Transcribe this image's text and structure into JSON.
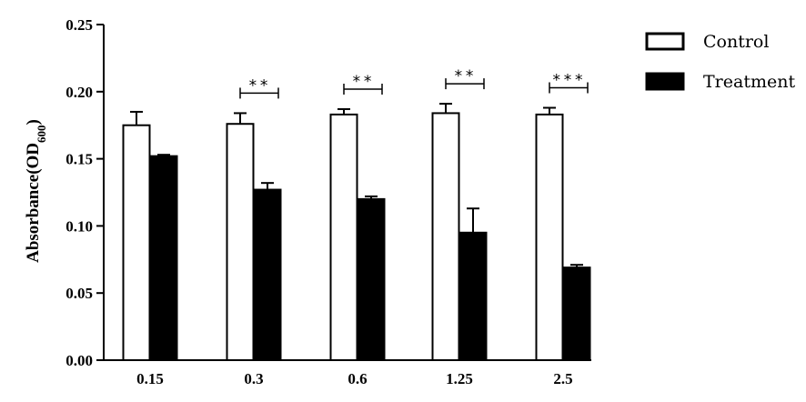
{
  "chart_data": {
    "type": "bar",
    "categories": [
      "0.15",
      "0.3",
      "0.6",
      "1.25",
      "2.5"
    ],
    "series": [
      {
        "name": "Control",
        "values": [
          0.175,
          0.176,
          0.183,
          0.184,
          0.183
        ],
        "errors": [
          0.01,
          0.008,
          0.004,
          0.007,
          0.005
        ],
        "color": "#ffffff"
      },
      {
        "name": "Treatment",
        "values": [
          0.152,
          0.127,
          0.12,
          0.095,
          0.069
        ],
        "errors": [
          0.001,
          0.005,
          0.002,
          0.018,
          0.002
        ],
        "color": "#000000"
      }
    ],
    "significance": [
      "",
      "**",
      "**",
      "**",
      "***"
    ],
    "ylabel_main": "Absorbance(OD",
    "ylabel_sub": "600",
    "ylabel_close": ")",
    "xlabel": "",
    "ylim": [
      0,
      0.25
    ],
    "yticks": [
      "0.00",
      "0.05",
      "0.10",
      "0.15",
      "0.20",
      "0.25"
    ],
    "legend_position": "top-right",
    "grid": false
  }
}
